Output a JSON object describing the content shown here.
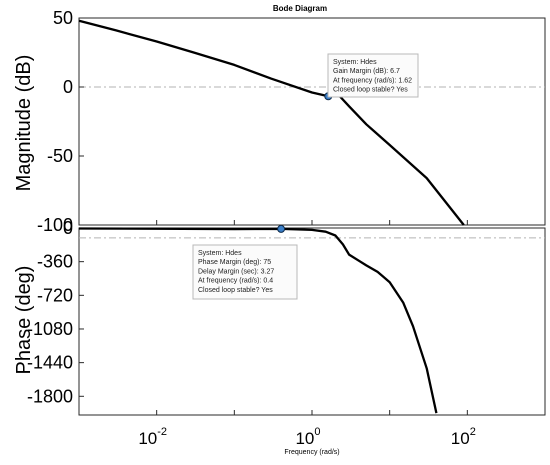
{
  "chart_data": {
    "type": "line",
    "title": "Bode Diagram",
    "xlabel": "Frequency  (rad/s)",
    "xscale": "log",
    "xlim": [
      0.001,
      1000
    ],
    "x_ticks": [
      {
        "base": "10",
        "exp": "-2",
        "value": 0.01
      },
      {
        "base": "10",
        "exp": "0",
        "value": 1
      },
      {
        "base": "10",
        "exp": "2",
        "value": 100
      }
    ],
    "grid": false,
    "panels": [
      {
        "name": "magnitude",
        "ylabel": "Magnitude (dB)",
        "ylim": [
          -100,
          50
        ],
        "yticks": [
          50,
          0,
          -50,
          -100
        ],
        "ytick_labels": [
          "50",
          "0",
          "-50",
          "-100"
        ],
        "reference_line": 0,
        "series": [
          {
            "x": [
              0.001,
              0.003,
              0.01,
              0.03,
              0.1,
              0.3,
              1.0,
              1.62,
              2.2,
              3.0,
              5.0,
              10.0,
              30.0,
              90.0
            ],
            "y": [
              48,
              41,
              33,
              25,
              16,
              6,
              -4,
              -6.7,
              -5.8,
              -14,
              -27,
              -42,
              -66,
              -100
            ]
          }
        ],
        "marker": {
          "x": 1.62,
          "y": -6.7
        },
        "datatip": [
          "System: Hdes",
          "Gain Margin (dB): 6.7",
          "At frequency (rad/s): 1.62",
          "Closed loop stable? Yes"
        ]
      },
      {
        "name": "phase",
        "ylabel": "Phase (deg)",
        "ylim": [
          -2000,
          0
        ],
        "yticks": [
          0,
          -360,
          -720,
          -1080,
          -1440,
          -1800
        ],
        "ytick_labels": [
          "0",
          "-360",
          "-720",
          "-1080",
          "-1440",
          "-1800"
        ],
        "reference_line": -105,
        "series": [
          {
            "x": [
              0.001,
              0.01,
              0.1,
              0.4,
              1.0,
              1.5,
              2.0,
              2.5,
              3.0,
              4.0,
              5.0,
              7.0,
              10.0,
              15.0,
              20.0,
              30.0,
              40.0
            ],
            "y": [
              -5,
              -7,
              -12,
              -10,
              -20,
              -40,
              -80,
              -175,
              -285,
              -350,
              -400,
              -470,
              -580,
              -800,
              -1050,
              -1500,
              -1980
            ]
          }
        ],
        "marker": {
          "x": 0.4,
          "y": -10
        },
        "datatip": [
          "System: Hdes",
          "Phase Margin (deg): 75",
          "Delay Margin (sec): 3.27",
          "At frequency (rad/s): 0.4",
          "Closed loop stable? Yes"
        ]
      }
    ]
  }
}
